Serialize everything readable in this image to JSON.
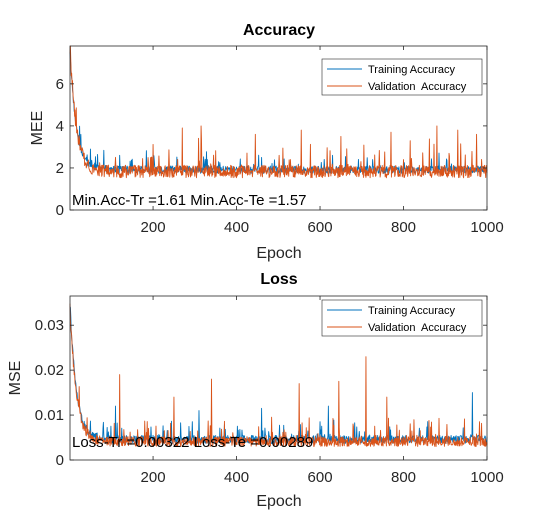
{
  "colors": {
    "training": "#0072BD",
    "validation": "#D95319",
    "axis": "#262626",
    "background": "#ffffff"
  },
  "chart_data": [
    {
      "type": "line",
      "title": "Accuracy",
      "xlabel": "Epoch",
      "ylabel": "MEE",
      "xlim": [
        1,
        1000
      ],
      "ylim": [
        0,
        7.8
      ],
      "xticks": [
        200,
        400,
        600,
        800,
        1000
      ],
      "yticks": [
        0,
        2,
        4,
        6
      ],
      "grid": false,
      "legend_position": "top-right",
      "annotation": "Min.Acc-Tr =1.61 Min.Acc-Te =1.57",
      "series": [
        {
          "name": "Training Accuracy",
          "start": 7.6,
          "asymptote": 1.9,
          "decay_epochs": 15,
          "noise": 0.35,
          "spikes": [
            [
              50,
              2.9
            ],
            [
              120,
              2.6
            ],
            [
              330,
              2.4
            ],
            [
              460,
              2.5
            ],
            [
              630,
              2.6
            ]
          ]
        },
        {
          "name": "Validation  Accuracy",
          "start": 7.7,
          "asymptote": 1.8,
          "decay_epochs": 15,
          "noise": 0.6,
          "spikes": [
            [
              270,
              3.9
            ],
            [
              315,
              4.0
            ],
            [
              445,
              3.6
            ],
            [
              555,
              3.8
            ],
            [
              650,
              3.5
            ],
            [
              770,
              3.7
            ],
            [
              880,
              4.0
            ],
            [
              930,
              3.8
            ],
            [
              975,
              3.6
            ]
          ]
        }
      ]
    },
    {
      "type": "line",
      "title": "Loss",
      "xlabel": "Epoch",
      "ylabel": "MSE",
      "xlim": [
        1,
        1000
      ],
      "ylim": [
        0,
        0.0365
      ],
      "xticks": [
        200,
        400,
        600,
        800,
        1000
      ],
      "yticks": [
        0,
        0.01,
        0.02,
        0.03
      ],
      "yticklabels": [
        "0",
        "0.01",
        "0.02",
        "0.03"
      ],
      "grid": false,
      "legend_position": "top-right",
      "annotation": "Loss-Tr =0.00322 Loss-Te =0.00289",
      "series": [
        {
          "name": "Training Accuracy",
          "start": 0.035,
          "asymptote": 0.0045,
          "decay_epochs": 15,
          "noise": 0.0018,
          "spikes": [
            [
              110,
              0.012
            ],
            [
              310,
              0.011
            ],
            [
              460,
              0.0115
            ],
            [
              620,
              0.012
            ],
            [
              965,
              0.015
            ]
          ]
        },
        {
          "name": "Validation  Accuracy",
          "start": 0.034,
          "asymptote": 0.004,
          "decay_epochs": 15,
          "noise": 0.0022,
          "spikes": [
            [
              120,
              0.019
            ],
            [
              250,
              0.014
            ],
            [
              340,
              0.018
            ],
            [
              550,
              0.017
            ],
            [
              645,
              0.0175
            ],
            [
              710,
              0.023
            ],
            [
              760,
              0.014
            ]
          ]
        }
      ]
    }
  ]
}
